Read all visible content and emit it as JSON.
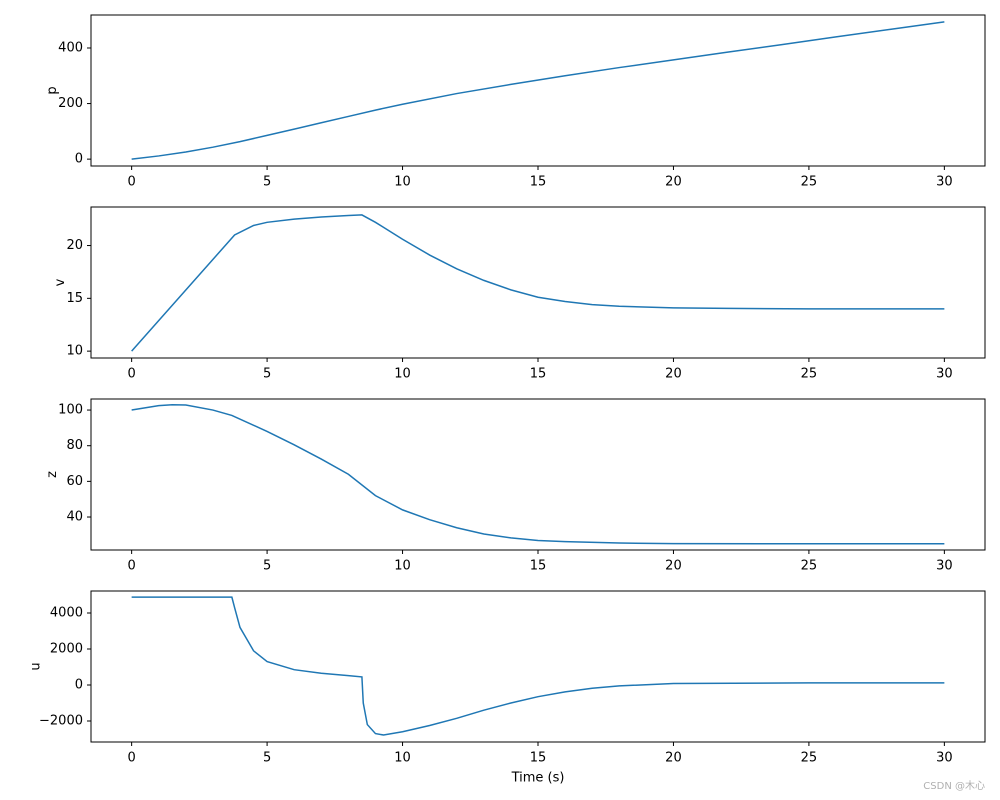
{
  "chart_data": [
    {
      "type": "line",
      "ylabel": "p",
      "color": "#1f77b4",
      "x": [
        0,
        1,
        2,
        3,
        4,
        5,
        6,
        7,
        8,
        9,
        10,
        12,
        14,
        16,
        18,
        20,
        22,
        24,
        26,
        28,
        30
      ],
      "values": [
        0,
        11.5,
        25.8,
        43,
        63,
        85.5,
        108,
        130.8,
        153.7,
        176.4,
        197.6,
        236,
        269,
        300,
        329.5,
        357,
        385,
        412,
        440,
        467,
        494
      ],
      "xlim": [
        -1.5,
        31.5
      ],
      "xticks": [
        0,
        5,
        10,
        15,
        20,
        25,
        30
      ],
      "ylim": [
        -24.7,
        518.7
      ],
      "yticks": [
        0,
        200,
        400
      ]
    },
    {
      "type": "line",
      "ylabel": "v",
      "color": "#1f77b4",
      "x": [
        0,
        3.8,
        4.5,
        5,
        6,
        7,
        8,
        8.5,
        9,
        10,
        11,
        12,
        13,
        14,
        15,
        16,
        17,
        18,
        20,
        22,
        25,
        30
      ],
      "values": [
        10,
        21,
        21.9,
        22.2,
        22.5,
        22.7,
        22.85,
        22.9,
        22.2,
        20.6,
        19.1,
        17.8,
        16.7,
        15.8,
        15.1,
        14.7,
        14.4,
        14.25,
        14.1,
        14.05,
        14,
        14
      ],
      "xlim": [
        -1.5,
        31.5
      ],
      "xticks": [
        0,
        5,
        10,
        15,
        20,
        25,
        30
      ],
      "ylim": [
        9.35,
        23.65
      ],
      "yticks": [
        10,
        15,
        20
      ]
    },
    {
      "type": "line",
      "ylabel": "z",
      "color": "#1f77b4",
      "x": [
        0,
        1,
        1.5,
        2,
        3,
        3.7,
        5,
        6,
        7,
        8,
        9,
        10,
        11,
        12,
        13,
        14,
        15,
        16,
        18,
        20,
        25,
        30
      ],
      "values": [
        100,
        102.5,
        103,
        102.8,
        100,
        97,
        88,
        80.5,
        72.5,
        64,
        52,
        44,
        38.5,
        34,
        30.5,
        28.3,
        26.8,
        26.2,
        25.4,
        25.1,
        25,
        25
      ],
      "xlim": [
        -1.5,
        31.5
      ],
      "xticks": [
        0,
        5,
        10,
        15,
        20,
        25,
        30
      ],
      "ylim": [
        21.5,
        106.2
      ],
      "yticks": [
        40,
        60,
        80,
        100
      ]
    },
    {
      "type": "line",
      "ylabel": "u",
      "xlabel": "Time (s)",
      "color": "#1f77b4",
      "x": [
        0,
        3.7,
        3.8,
        4,
        4.5,
        5,
        6,
        7,
        8,
        8.5,
        8.55,
        8.7,
        9,
        9.3,
        10,
        11,
        12,
        13,
        14,
        15,
        16,
        17,
        18,
        20,
        25,
        30
      ],
      "values": [
        4880,
        4880,
        4300,
        3200,
        1900,
        1300,
        850,
        650,
        520,
        450,
        -1000,
        -2200,
        -2700,
        -2780,
        -2600,
        -2250,
        -1850,
        -1400,
        -1000,
        -650,
        -380,
        -180,
        -50,
        80,
        120,
        120
      ],
      "xlim": [
        -1.5,
        31.5
      ],
      "xticks": [
        0,
        5,
        10,
        15,
        20,
        25,
        30
      ],
      "ylim": [
        -3167,
        5222
      ],
      "yticks": [
        {
          "value": -2000,
          "label": "−2000"
        },
        0,
        2000,
        4000
      ]
    }
  ],
  "watermark": "CSDN @木心"
}
